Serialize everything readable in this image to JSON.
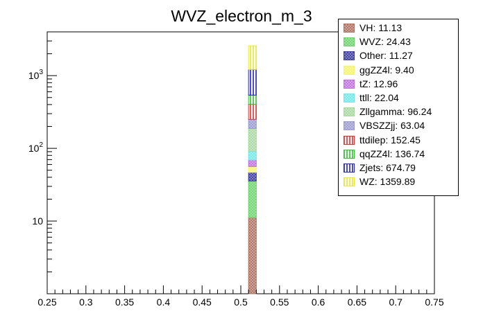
{
  "chart_data": {
    "type": "bar",
    "title": "WVZ_electron_m_3",
    "xlabel": "",
    "ylabel": "",
    "x_range": [
      0.25,
      0.75
    ],
    "y_scale": "log",
    "y_range": [
      1,
      4000
    ],
    "x_ticks": [
      "0.25",
      "0.3",
      "0.35",
      "0.4",
      "0.45",
      "0.5",
      "0.55",
      "0.6",
      "0.65",
      "0.7",
      "0.75"
    ],
    "y_tick_labels": [
      {
        "value": 10,
        "base": "10",
        "exp": ""
      },
      {
        "value": 100,
        "base": "10",
        "exp": "2"
      },
      {
        "value": 1000,
        "base": "10",
        "exp": "3"
      }
    ],
    "bin": [
      0.51,
      0.52
    ],
    "stacked": true,
    "legend_position": "top-right",
    "series": [
      {
        "name": "VH",
        "label": "VH: 11.13",
        "value": 11.13,
        "color": "#b07060",
        "pattern": "cross"
      },
      {
        "name": "WVZ",
        "label": "WVZ: 24.43",
        "value": 24.43,
        "color": "#6bd36b",
        "pattern": "cross"
      },
      {
        "name": "Other",
        "label": "Other: 11.27",
        "value": 11.27,
        "color": "#3a3aa0",
        "pattern": "cross"
      },
      {
        "name": "ggZZ4l",
        "label": "ggZZ4l: 9.40",
        "value": 9.4,
        "color": "#f5f56a",
        "pattern": "cross"
      },
      {
        "name": "tZ",
        "label": "tZ: 12.96",
        "value": 12.96,
        "color": "#c070e0",
        "pattern": "cross"
      },
      {
        "name": "ttll",
        "label": "ttll: 22.04",
        "value": 22.04,
        "color": "#70e8e8",
        "pattern": "cross"
      },
      {
        "name": "Zllgamma",
        "label": "Zllgamma: 96.24",
        "value": 96.24,
        "color": "#a8d8a0",
        "pattern": "cross"
      },
      {
        "name": "VBSZZjj",
        "label": "VBSZZjj: 63.04",
        "value": 63.04,
        "color": "#9a9ad0",
        "pattern": "cross"
      },
      {
        "name": "ttdilep",
        "label": "ttdilep: 152.45",
        "value": 152.45,
        "color": "#e03030",
        "pattern": "vlines"
      },
      {
        "name": "qqZZ4l",
        "label": "qqZZ4l: 136.74",
        "value": 136.74,
        "color": "#30c030",
        "pattern": "vlines"
      },
      {
        "name": "Zjets",
        "label": "Zjets: 674.79",
        "value": 674.79,
        "color": "#2020d0",
        "pattern": "vlines"
      },
      {
        "name": "WZ",
        "label": "WZ: 1359.89",
        "value": 1359.89,
        "color": "#e8e830",
        "pattern": "vlines"
      }
    ]
  }
}
